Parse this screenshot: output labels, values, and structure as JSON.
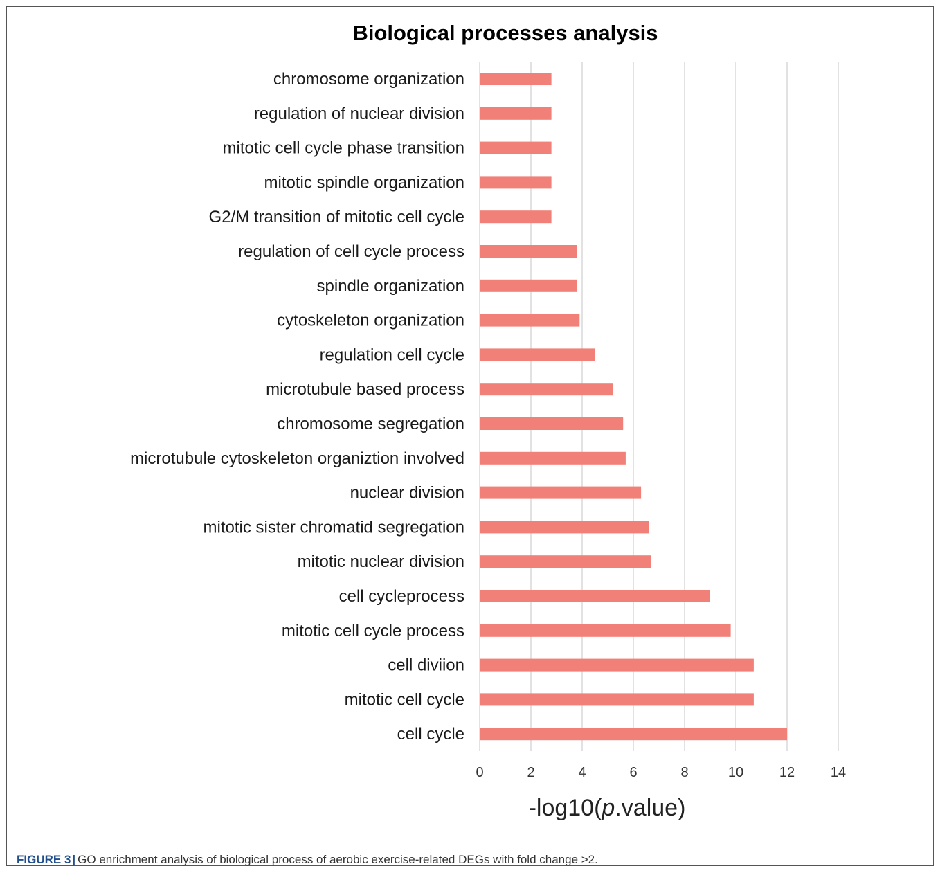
{
  "chart_data": {
    "type": "bar",
    "orientation": "horizontal",
    "title": "Biological processes analysis",
    "xlabel_prefix": "-log10(",
    "xlabel_italic": "p",
    "xlabel_suffix": ".value)",
    "xlim": [
      0,
      14
    ],
    "xticks": [
      "0",
      "2",
      "4",
      "6",
      "8",
      "10",
      "12",
      "14"
    ],
    "grid": "vertical",
    "bar_color": "#f08078",
    "categories": [
      "chromosome organization",
      "regulation of nuclear division",
      "mitotic cell cycle phase transition",
      "mitotic spindle organization",
      "G2/M transition of mitotic cell cycle",
      "regulation of cell cycle process",
      "spindle organization",
      "cytoskeleton organization",
      "regulation cell cycle",
      "microtubule based process",
      "chromosome segregation",
      "microtubule cytoskeleton organiztion involved",
      "nuclear division",
      "mitotic sister chromatid segregation",
      "mitotic nuclear division",
      "cell cycleprocess",
      "mitotic cell cycle process",
      "cell diviion",
      "mitotic cell cycle",
      "cell cycle"
    ],
    "values": [
      2.8,
      2.8,
      2.8,
      2.8,
      2.8,
      3.8,
      3.8,
      3.9,
      4.5,
      5.2,
      5.6,
      5.7,
      6.3,
      6.6,
      6.7,
      9.0,
      9.8,
      10.7,
      10.7,
      12.0
    ]
  },
  "caption": {
    "label": "FIGURE 3",
    "separator": "|",
    "text": "GO enrichment analysis of biological process of aerobic exercise-related DEGs with fold change >2."
  }
}
